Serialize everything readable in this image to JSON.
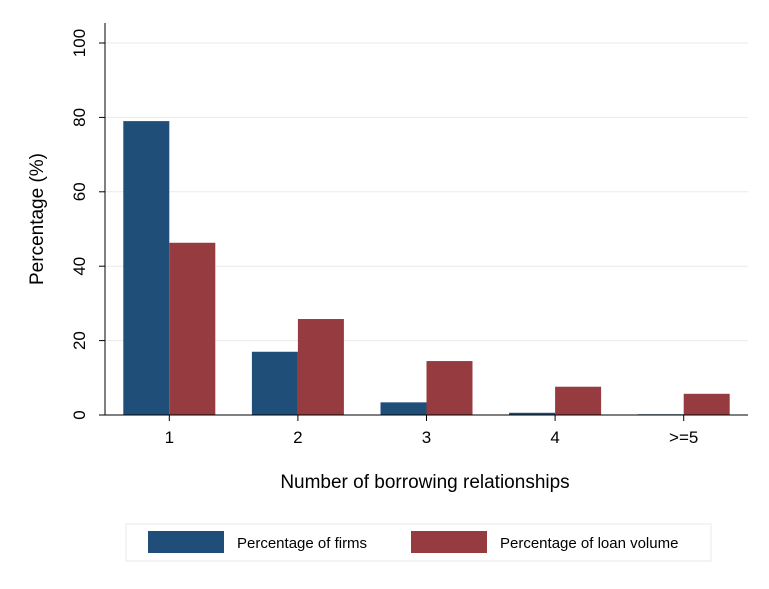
{
  "chart_data": {
    "type": "bar",
    "title": "",
    "xlabel": "Number of borrowing relationships",
    "ylabel": "Percentage (%)",
    "ylim": [
      0,
      100
    ],
    "yticks": [
      0,
      20,
      40,
      60,
      80,
      100
    ],
    "categories": [
      "1",
      "2",
      "3",
      "4",
      ">=5"
    ],
    "series": [
      {
        "name": "Percentage of firms",
        "color": "#1f4e79",
        "values": [
          79,
          17,
          3.4,
          0.6,
          0.2
        ]
      },
      {
        "name": "Percentage of loan volume",
        "color": "#963b40",
        "values": [
          46.3,
          25.8,
          14.5,
          7.6,
          5.7
        ]
      }
    ],
    "grid": true,
    "legend_position": "bottom"
  }
}
